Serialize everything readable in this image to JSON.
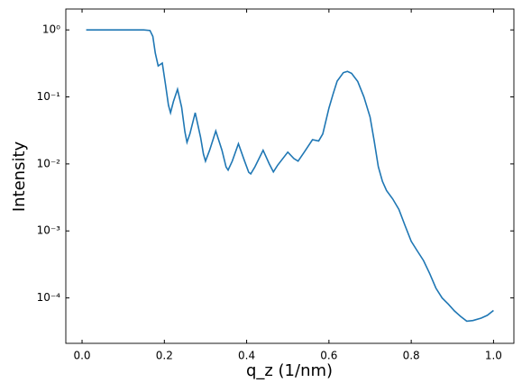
{
  "chart_data": {
    "type": "line",
    "xlabel": "q_z (1/nm)",
    "ylabel": "Intensity",
    "x": [
      0.01,
      0.05,
      0.1,
      0.15,
      0.165,
      0.172,
      0.178,
      0.185,
      0.195,
      0.203,
      0.21,
      0.215,
      0.222,
      0.232,
      0.242,
      0.25,
      0.255,
      0.262,
      0.275,
      0.288,
      0.295,
      0.3,
      0.31,
      0.325,
      0.34,
      0.35,
      0.355,
      0.365,
      0.38,
      0.395,
      0.405,
      0.41,
      0.42,
      0.44,
      0.455,
      0.465,
      0.475,
      0.5,
      0.515,
      0.525,
      0.54,
      0.56,
      0.575,
      0.585,
      0.6,
      0.61,
      0.62,
      0.635,
      0.645,
      0.655,
      0.67,
      0.685,
      0.7,
      0.71,
      0.72,
      0.73,
      0.74,
      0.755,
      0.77,
      0.785,
      0.8,
      0.815,
      0.83,
      0.845,
      0.86,
      0.875,
      0.89,
      0.905,
      0.92,
      0.935,
      0.95,
      0.97,
      0.985,
      1.0
    ],
    "series": [
      {
        "color": "#1f77b4",
        "values": [
          1.0,
          1.0,
          1.0,
          1.0,
          0.98,
          0.8,
          0.45,
          0.29,
          0.32,
          0.15,
          0.075,
          0.058,
          0.085,
          0.13,
          0.07,
          0.03,
          0.021,
          0.028,
          0.058,
          0.025,
          0.014,
          0.011,
          0.016,
          0.031,
          0.016,
          0.009,
          0.0081,
          0.011,
          0.02,
          0.011,
          0.0075,
          0.0071,
          0.009,
          0.016,
          0.01,
          0.0076,
          0.0095,
          0.015,
          0.012,
          0.011,
          0.015,
          0.023,
          0.022,
          0.028,
          0.068,
          0.11,
          0.172,
          0.23,
          0.24,
          0.225,
          0.17,
          0.1,
          0.05,
          0.022,
          0.0091,
          0.0055,
          0.004,
          0.003,
          0.0021,
          0.0012,
          0.0007,
          0.0005,
          0.00036,
          0.00023,
          0.00014,
          0.0001,
          8.1e-05,
          6.4e-05,
          5.3e-05,
          4.5e-05,
          4.6e-05,
          5e-05,
          5.5e-05,
          6.5e-05
        ]
      }
    ],
    "xlim": [
      -0.0395,
      1.0495
    ],
    "ylim": [
      2.1e-05,
      2.05
    ],
    "log_y": true,
    "xticks": [
      {
        "value": 0,
        "label": "0.0"
      },
      0.2,
      0.4,
      0.6,
      0.8,
      {
        "value": 1,
        "label": "1.0"
      }
    ],
    "yticks": [
      {
        "value": 0.0001,
        "label": "10⁻⁴"
      },
      {
        "value": 0.001,
        "label": "10⁻³"
      },
      {
        "value": 0.01,
        "label": "10⁻²"
      },
      {
        "value": 0.1,
        "label": "10⁻¹"
      },
      {
        "value": 1,
        "label": "10⁰"
      }
    ]
  }
}
